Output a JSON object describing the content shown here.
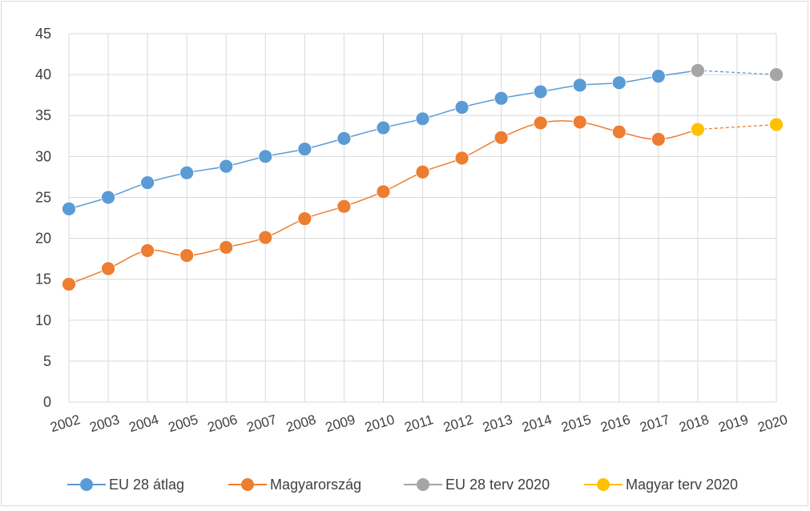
{
  "chart_data": {
    "type": "line",
    "title": "",
    "xlabel": "",
    "ylabel": "",
    "categories": [
      "2002",
      "2003",
      "2004",
      "2005",
      "2006",
      "2007",
      "2008",
      "2009",
      "2010",
      "2011",
      "2012",
      "2013",
      "2014",
      "2015",
      "2016",
      "2017",
      "2018",
      "2019",
      "2020"
    ],
    "ylim": [
      0,
      45
    ],
    "yticks": [
      0,
      5,
      10,
      15,
      20,
      25,
      30,
      35,
      40,
      45
    ],
    "grid": "horizontal",
    "legend_position": "bottom",
    "series": [
      {
        "name": "EU 28 átlag",
        "color": "#5b9bd5",
        "line": "solid",
        "values": [
          23.6,
          25.0,
          26.8,
          28.0,
          28.8,
          30.0,
          30.9,
          32.2,
          33.5,
          34.6,
          36.0,
          37.1,
          37.9,
          38.7,
          39.0,
          39.8,
          40.5,
          null,
          null
        ]
      },
      {
        "name": "Magyarország",
        "color": "#ed7d31",
        "line": "solid",
        "values": [
          14.4,
          16.3,
          18.5,
          17.9,
          18.9,
          20.1,
          22.4,
          23.9,
          25.7,
          28.1,
          29.8,
          32.3,
          34.1,
          34.2,
          33.0,
          32.1,
          33.3,
          null,
          null
        ]
      },
      {
        "name": "EU 28 terv 2020",
        "color": "#a5a5a5",
        "line": "dashed",
        "line_color": "#5b9bd5",
        "values": [
          null,
          null,
          null,
          null,
          null,
          null,
          null,
          null,
          null,
          null,
          null,
          null,
          null,
          null,
          null,
          null,
          40.5,
          null,
          40.0
        ]
      },
      {
        "name": "Magyar terv 2020",
        "color": "#ffc000",
        "line": "dashed",
        "line_color": "#ed7d31",
        "values": [
          null,
          null,
          null,
          null,
          null,
          null,
          null,
          null,
          null,
          null,
          null,
          null,
          null,
          null,
          null,
          null,
          33.3,
          null,
          33.9
        ]
      }
    ]
  }
}
